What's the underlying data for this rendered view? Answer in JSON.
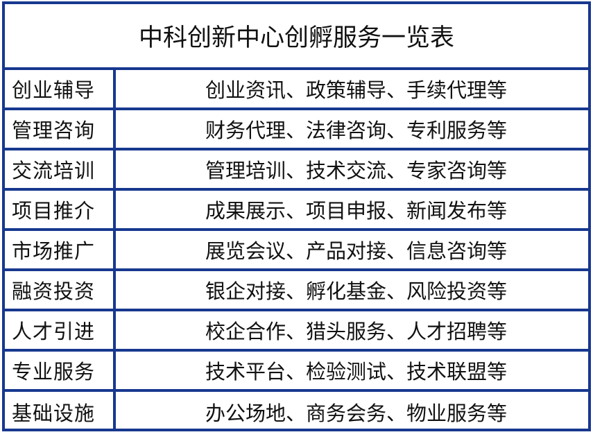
{
  "title": "中科创新中心创孵服务一览表",
  "rows": [
    {
      "category": "创业辅导",
      "services": "创业资讯、政策辅导、手续代理等"
    },
    {
      "category": "管理咨询",
      "services": "财务代理、法律咨询、专利服务等"
    },
    {
      "category": "交流培训",
      "services": "管理培训、技术交流、专家咨询等"
    },
    {
      "category": "项目推介",
      "services": "成果展示、项目申报、新闻发布等"
    },
    {
      "category": "市场推广",
      "services": "展览会议、产品对接、信息咨询等"
    },
    {
      "category": "融资投资",
      "services": "银企对接、孵化基金、风险投资等"
    },
    {
      "category": "人才引进",
      "services": "校企合作、猎头服务、人才招聘等"
    },
    {
      "category": "专业服务",
      "services": "技术平台、检验测试、技术联盟等"
    },
    {
      "category": "基础设施",
      "services": "办公场地、商务会务、物业服务等"
    }
  ],
  "colors": {
    "border": "#17388f"
  }
}
